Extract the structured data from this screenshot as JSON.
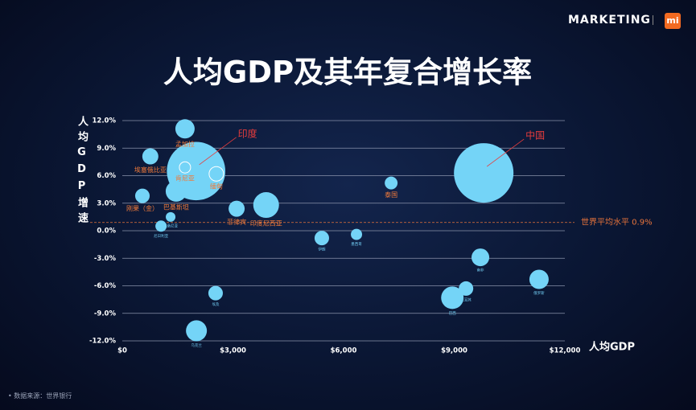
{
  "brand": "MARKETING",
  "brand_mark": "mi",
  "footnote": "数据来源：世界银行",
  "chart_data": {
    "type": "bubble",
    "title": "人均GDP及其年复合增长率",
    "x_label": "人均GDP",
    "y_label": "人均GDP增速",
    "xlim": [
      0,
      12000
    ],
    "ylim": [
      -12,
      12
    ],
    "xticks": [
      {
        "value": 0,
        "label": "$0"
      },
      {
        "value": 3000,
        "label": "$3,000"
      },
      {
        "value": 6000,
        "label": "$6,000"
      },
      {
        "value": 9000,
        "label": "$9,000"
      },
      {
        "value": 12000,
        "label": "$12,000"
      }
    ],
    "yticks": [
      {
        "value": 12,
        "label": "12.0%"
      },
      {
        "value": 9,
        "label": "9.0%"
      },
      {
        "value": 6,
        "label": "6.0%"
      },
      {
        "value": 3,
        "label": "3.0%"
      },
      {
        "value": 0,
        "label": "0.0%"
      },
      {
        "value": -3,
        "label": "-3.0%"
      },
      {
        "value": -6,
        "label": "-6.0%"
      },
      {
        "value": -9,
        "label": "-9.0%"
      },
      {
        "value": -12,
        "label": "-12.0%"
      }
    ],
    "grid": true,
    "color": "#74d4f7",
    "reference_line": {
      "value": 0.9,
      "label": "世界平均水平 0.9%",
      "color": "#e8743b"
    },
    "labels": [
      "印度",
      "中国",
      "孟加拉",
      "埃塞俄比亚",
      "肯尼亚",
      "缅甸",
      "巴基斯坦",
      "刚果（金）",
      "坦桑尼亚",
      "尼日利亚",
      "菲律宾",
      "印度尼西亚",
      "伊朗",
      "墨西哥",
      "泰国",
      "南非",
      "巴西",
      "土耳其",
      "俄罗斯",
      "埃及",
      "乌克兰"
    ],
    "label_styles": [
      "callout",
      "callout",
      "major",
      "major",
      "major",
      "major",
      "major",
      "major",
      "minor",
      "minor",
      "major",
      "major",
      "minor",
      "minor",
      "major",
      "minor",
      "minor",
      "minor",
      "minor",
      "minor",
      "minor"
    ],
    "x": [
      2000,
      9800,
      1700,
      760,
      1700,
      2550,
      1460,
      545,
      1310,
      1050,
      3100,
      3900,
      5410,
      6350,
      7290,
      9710,
      8950,
      9320,
      11300,
      2530,
      2010
    ],
    "y": [
      6.5,
      6.3,
      11.1,
      8.1,
      6.9,
      6.2,
      4.3,
      3.8,
      1.5,
      0.5,
      2.4,
      2.8,
      -0.8,
      -0.4,
      5.2,
      -2.9,
      -7.3,
      -6.3,
      -5.3,
      -6.8,
      -10.9
    ],
    "sizes": [
      1350,
      1400,
      147,
      102,
      50,
      83,
      173,
      83,
      37,
      50,
      102,
      262,
      83,
      50,
      65,
      124,
      200,
      83,
      147,
      83,
      173
    ],
    "edge_colors": [
      null,
      null,
      null,
      null,
      "#ffffff",
      "#ffffff",
      null,
      null,
      null,
      null,
      null,
      null,
      null,
      null,
      null,
      null,
      null,
      null,
      null,
      null,
      null
    ]
  }
}
